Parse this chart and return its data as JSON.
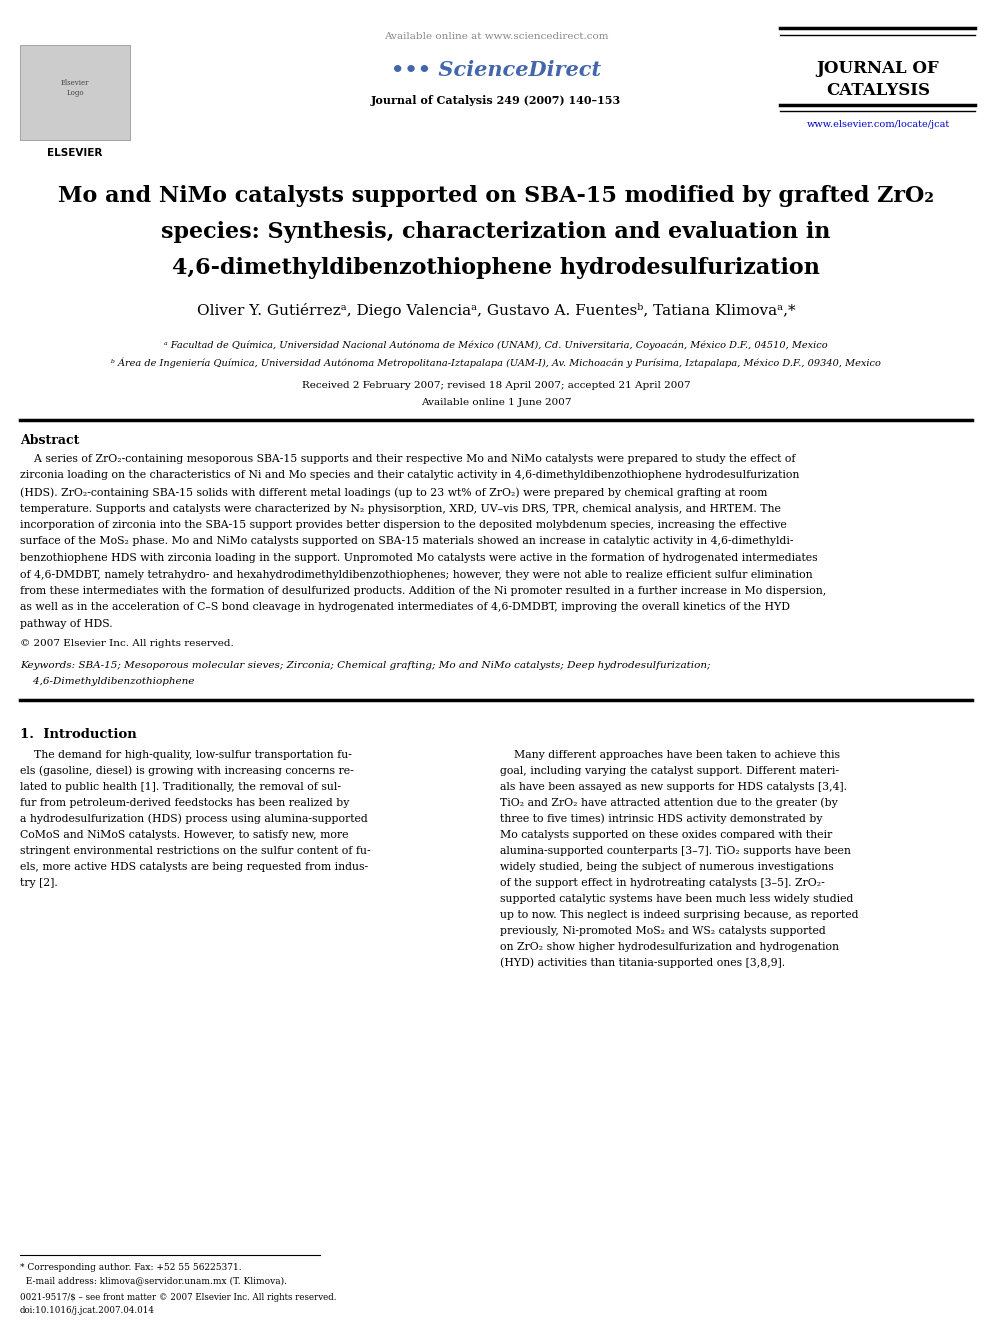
{
  "title_line1": "Mo and NiMo catalysts supported on SBA-15 modified by grafted ZrO₂",
  "title_line2": "species: Synthesis, characterization and evaluation in",
  "title_line3": "4,6-dimethyldibenzothiophene hydrodesulfurization",
  "authors": "Oliver Y. Gutiérrezᵃ, Diego Valenciaᵃ, Gustavo A. Fuentesᵇ, Tatiana Klimovaᵃ,*",
  "affil_a": "ᵃ Facultad de Química, Universidad Nacional Autónoma de México (UNAM), Cd. Universitaria, Coyoacán, México D.F., 04510, Mexico",
  "affil_b": "ᵇ Área de Ingeniería Química, Universidad Autónoma Metropolitana-Iztapalapa (UAM-I), Av. Michoacán y Purísima, Iztapalapa, México D.F., 09340, Mexico",
  "received": "Received 2 February 2007; revised 18 April 2007; accepted 21 April 2007",
  "available": "Available online 1 June 2007",
  "journal_name": "Journal of Catalysis 249 (2007) 140–153",
  "journal_url": "www.elsevier.com/locate/jcat",
  "sd_available": "Available online at www.sciencedirect.com",
  "journal_of": "JOURNAL OF",
  "catalysis": "CATALYSIS",
  "abstract_title": "Abstract",
  "abstract_lines": [
    "    A series of ZrO₂-containing mesoporous SBA-15 supports and their respective Mo and NiMo catalysts were prepared to study the effect of",
    "zirconia loading on the characteristics of Ni and Mo species and their catalytic activity in 4,6-dimethyldibenzothiophene hydrodesulfurization",
    "(HDS). ZrO₂-containing SBA-15 solids with different metal loadings (up to 23 wt% of ZrO₂) were prepared by chemical grafting at room",
    "temperature. Supports and catalysts were characterized by N₂ physisorption, XRD, UV–vis DRS, TPR, chemical analysis, and HRTEM. The",
    "incorporation of zirconia into the SBA-15 support provides better dispersion to the deposited molybdenum species, increasing the effective",
    "surface of the MoS₂ phase. Mo and NiMo catalysts supported on SBA-15 materials showed an increase in catalytic activity in 4,6-dimethyldi-",
    "benzothiophene HDS with zirconia loading in the support. Unpromoted Mo catalysts were active in the formation of hydrogenated intermediates",
    "of 4,6-DMDBT, namely tetrahydro- and hexahydrodimethyldibenzothiophenes; however, they were not able to realize efficient sulfur elimination",
    "from these intermediates with the formation of desulfurized products. Addition of the Ni promoter resulted in a further increase in Mo dispersion,",
    "as well as in the acceleration of C–S bond cleavage in hydrogenated intermediates of 4,6-DMDBT, improving the overall kinetics of the HYD",
    "pathway of HDS."
  ],
  "copyright": "© 2007 Elsevier Inc. All rights reserved.",
  "kw_line1": "Keywords: SBA-15; Mesoporous molecular sieves; Zirconia; Chemical grafting; Mo and NiMo catalysts; Deep hydrodesulfurization;",
  "kw_line2": "    4,6-Dimethyldibenzothiophene",
  "intro_title": "1.  Introduction",
  "intro_left": [
    "    The demand for high-quality, low-sulfur transportation fu-",
    "els (gasoline, diesel) is growing with increasing concerns re-",
    "lated to public health [1]. Traditionally, the removal of sul-",
    "fur from petroleum-derived feedstocks has been realized by",
    "a hydrodesulfurization (HDS) process using alumina-supported",
    "CoMoS and NiMoS catalysts. However, to satisfy new, more",
    "stringent environmental restrictions on the sulfur content of fu-",
    "els, more active HDS catalysts are being requested from indus-",
    "try [2]."
  ],
  "intro_right": [
    "    Many different approaches have been taken to achieve this",
    "goal, including varying the catalyst support. Different materi-",
    "als have been assayed as new supports for HDS catalysts [3,4].",
    "TiO₂ and ZrO₂ have attracted attention due to the greater (by",
    "three to five times) intrinsic HDS activity demonstrated by",
    "Mo catalysts supported on these oxides compared with their",
    "alumina-supported counterparts [3–7]. TiO₂ supports have been",
    "widely studied, being the subject of numerous investigations",
    "of the support effect in hydrotreating catalysts [3–5]. ZrO₂-",
    "supported catalytic systems have been much less widely studied",
    "up to now. This neglect is indeed surprising because, as reported",
    "previously, Ni-promoted MoS₂ and WS₂ catalysts supported",
    "on ZrO₂ show higher hydrodesulfurization and hydrogenation",
    "(HYD) activities than titania-supported ones [3,8,9]."
  ],
  "foot1": "* Corresponding author. Fax: +52 55 56225371.",
  "foot2": "  E-mail address: klimova@servidor.unam.mx (T. Klimova).",
  "foot3": "0021-9517/$ – see front matter © 2007 Elsevier Inc. All rights reserved.",
  "foot4": "doi:10.1016/j.jcat.2007.04.014",
  "bg_color": "#ffffff"
}
